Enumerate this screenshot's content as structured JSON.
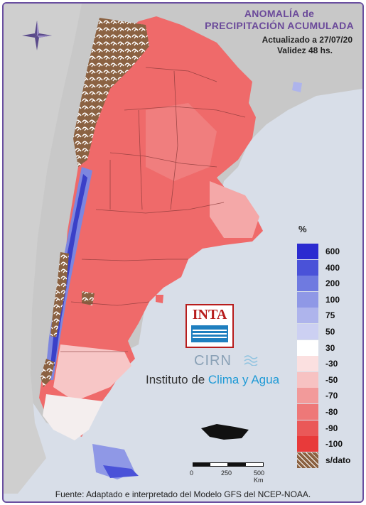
{
  "header": {
    "title_line1": "ANOMALÍA de",
    "title_line2": "PRECIPITACIÓN ACUMULADA",
    "updated": "Actualizado a 27/07/20",
    "validity": "Validez 48 hs."
  },
  "legend": {
    "unit": "%",
    "entries": [
      {
        "label": "600",
        "color": "#2b2bd0"
      },
      {
        "label": "400",
        "color": "#4a52d8"
      },
      {
        "label": "200",
        "color": "#6f7ae0"
      },
      {
        "label": "100",
        "color": "#8f98e6"
      },
      {
        "label": "75",
        "color": "#aeb4ec"
      },
      {
        "label": "50",
        "color": "#ccd0f2"
      },
      {
        "label": "30",
        "color": "#ffffff"
      },
      {
        "label": "-30",
        "color": "#fbe0e0"
      },
      {
        "label": "-50",
        "color": "#f7c2c2"
      },
      {
        "label": "-70",
        "color": "#f29a9a"
      },
      {
        "label": "-80",
        "color": "#ee7878"
      },
      {
        "label": "-90",
        "color": "#ea5858"
      },
      {
        "label": "-100",
        "color": "#e83a3a"
      },
      {
        "label": "s/dato",
        "color": "#8b6242"
      }
    ]
  },
  "logos": {
    "inta": "INTA",
    "cirn": "CIRN",
    "institute_prefix": "Instituto de ",
    "institute_accent": "Clima y Agua"
  },
  "scale": {
    "labels": [
      "0",
      "250",
      "500 Km"
    ]
  },
  "footer": {
    "source": "Fuente: Adaptado e interpretado del Modelo GFS del NCEP-NOAA."
  },
  "icons": [
    "compass-rose-icon"
  ],
  "colors": {
    "sea": "#d8dee8",
    "land_other": "#c8c8c8",
    "title": "#6b4a9a",
    "frame": "#6a4fa0"
  }
}
